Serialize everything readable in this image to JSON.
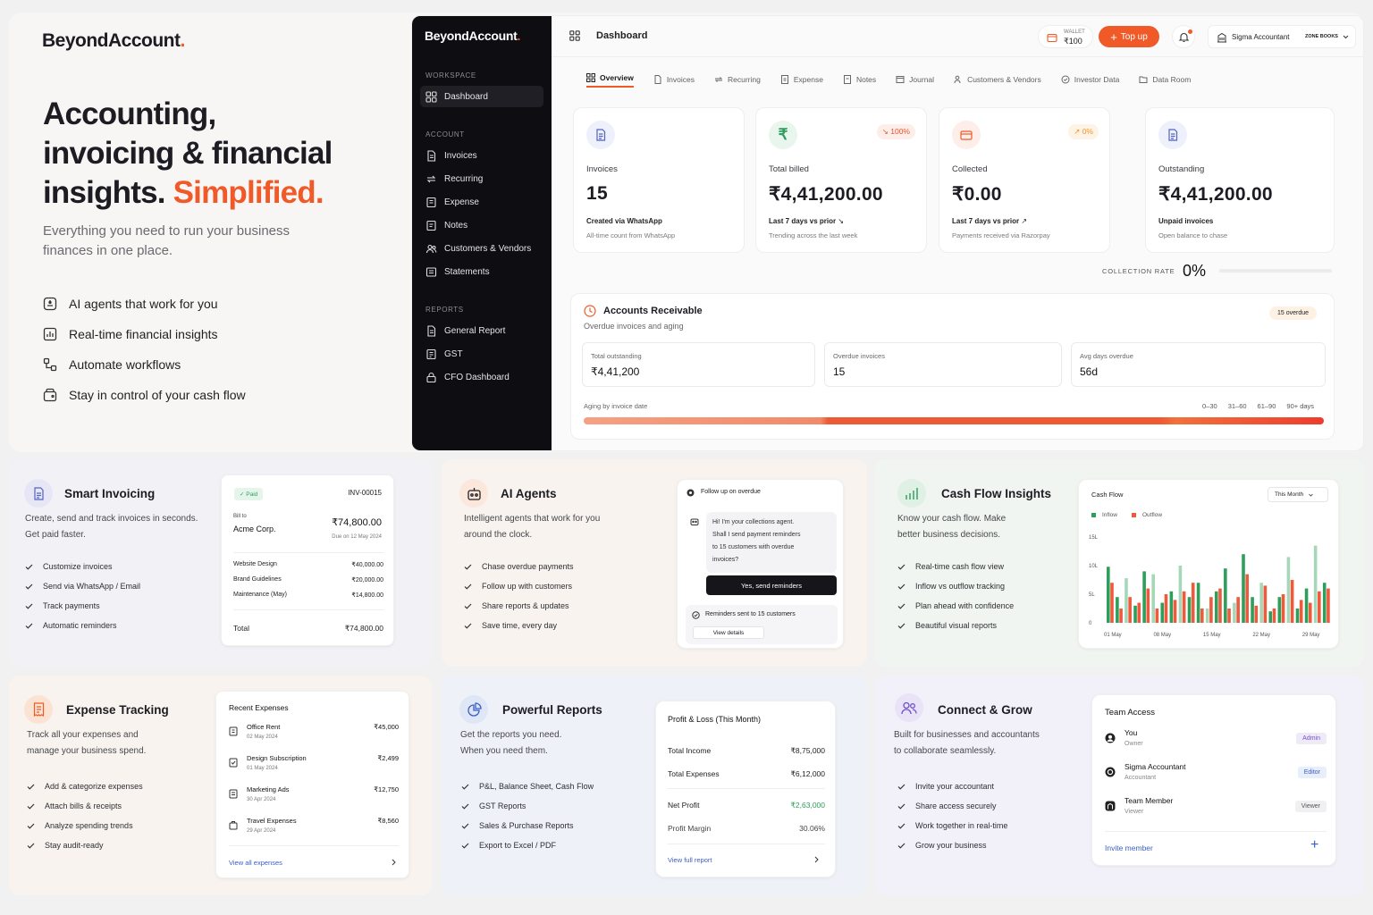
{
  "hero": {
    "logo": "BeyondAccount",
    "headline_line1": "Accounting,",
    "headline_line2": "invoicing & financial",
    "headline_line3a": "insights.",
    "headline_line3b": "Simplified.",
    "subtext_line1": "Everything you need to run your business",
    "subtext_line2": "finances in one place.",
    "features": [
      "AI agents that work for you",
      "Real-time financial insights",
      "Automate workflows",
      "Stay in control of your cash flow"
    ]
  },
  "app": {
    "logo": "BeyondAccount",
    "header_title": "Dashboard",
    "wallet_label": "WALLET",
    "wallet_amount": "₹100",
    "topup_label": "Top up",
    "user_name": "Sigma Accountant",
    "org_name": "ZONE BOOKS",
    "sidebar": {
      "workspace_label": "WORKSPACE",
      "account_label": "ACCOUNT",
      "reports_label": "REPORTS",
      "workspace_items": [
        "Dashboard"
      ],
      "account_items": [
        "Invoices",
        "Recurring",
        "Expense",
        "Notes",
        "Customers & Vendors",
        "Statements"
      ],
      "report_items": [
        "General Report",
        "GST",
        "CFO Dashboard"
      ]
    },
    "tabs": [
      "Overview",
      "Invoices",
      "Recurring",
      "Expense",
      "Notes",
      "Journal",
      "Customers & Vendors",
      "Investor Data",
      "Data Room"
    ],
    "stats": [
      {
        "label": "Invoices",
        "value": "15",
        "sub1": "Created via WhatsApp",
        "sub2": "All-time count from WhatsApp",
        "chip": ""
      },
      {
        "label": "Total billed",
        "value": "₹4,41,200.00",
        "sub1": "Last 7 days vs prior",
        "sub2": "Trending across the last week",
        "chip": "100%"
      },
      {
        "label": "Collected",
        "value": "₹0.00",
        "sub1": "Last 7 days vs prior",
        "sub2": "Payments received via Razorpay",
        "chip": "0%"
      },
      {
        "label": "Outstanding",
        "value": "₹4,41,200.00",
        "sub1": "Unpaid invoices",
        "sub2": "Open balance to chase",
        "chip": ""
      }
    ],
    "collection_rate_label": "COLLECTION RATE",
    "collection_rate_value": "0%",
    "ar": {
      "title": "Accounts Receivable",
      "subtitle": "Overdue invoices and aging",
      "overdue_badge": "15 overdue",
      "boxes": [
        {
          "label": "Total outstanding",
          "value": "₹4,41,200"
        },
        {
          "label": "Overdue invoices",
          "value": "15"
        },
        {
          "label": "Avg days overdue",
          "value": "56d"
        }
      ],
      "aging_label": "Aging by invoice date",
      "aging_buckets": [
        "0–30",
        "31–60",
        "61–90",
        "90+ days"
      ]
    }
  },
  "smart_invoicing": {
    "title": "Smart Invoicing",
    "desc_line1": "Create, send and track invoices in seconds.",
    "desc_line2": "Get paid faster.",
    "checks": [
      "Customize invoices",
      "Send via WhatsApp / Email",
      "Track payments",
      "Automatic reminders"
    ],
    "invoice": {
      "status": "Paid",
      "number": "INV-00015",
      "bill_to_label": "Bill to",
      "customer": "Acme Corp.",
      "amount": "₹74,800.00",
      "due": "Due on 12 May 2024",
      "lines": [
        {
          "item": "Website Design",
          "amount": "₹40,000.00"
        },
        {
          "item": "Brand Guidelines",
          "amount": "₹20,000.00"
        },
        {
          "item": "Maintenance (May)",
          "amount": "₹14,800.00"
        }
      ],
      "total_label": "Total",
      "total": "₹74,800.00"
    }
  },
  "ai_agents": {
    "title": "AI Agents",
    "desc_line1": "Intelligent agents that work for you",
    "desc_line2": "around the clock.",
    "checks": [
      "Chase overdue payments",
      "Follow up with customers",
      "Share reports & updates",
      "Save time, every day"
    ],
    "chat": {
      "header": "Follow up on overdue",
      "message_l1": "Hi! I'm your collections agent.",
      "message_l2": "Shall I send payment reminders",
      "message_l3": "to 15 customers with overdue",
      "message_l4": "invoices?",
      "confirm": "Yes, send reminders",
      "result": "Reminders sent to 15 customers",
      "details": "View details"
    }
  },
  "cash_flow": {
    "title": "Cash Flow Insights",
    "desc_line1": "Know your cash flow. Make",
    "desc_line2": "better business decisions.",
    "checks": [
      "Real-time cash flow view",
      "Inflow vs outflow tracking",
      "Plan ahead with confidence",
      "Beautiful visual reports"
    ],
    "chart_title": "Cash Flow",
    "period": "This Month",
    "colors": {
      "inflow": "#2e9e5b",
      "inflow_light": "#a7d7b9",
      "outflow": "#ef5a3c"
    }
  },
  "chart_data": {
    "type": "bar",
    "title": "Cash Flow",
    "x_tick_labels": [
      "01 May",
      "08 May",
      "15 May",
      "22 May",
      "29 May"
    ],
    "y_tick_labels": [
      "0",
      "5L",
      "10L",
      "15L"
    ],
    "ylim": [
      0,
      15
    ],
    "legend": "top-left",
    "series": [
      {
        "name": "Inflow",
        "values": [
          9.8,
          4.5,
          7.8,
          3,
          9,
          8.5,
          3.5,
          5.5,
          10,
          4.5,
          7,
          2.5,
          5.5,
          9.5,
          3.5,
          12,
          4.5,
          7,
          2,
          4.5,
          11.5,
          2.5,
          6,
          13.5,
          7
        ]
      },
      {
        "name": "Outflow",
        "values": [
          7,
          2.5,
          4.5,
          3.5,
          6,
          2.5,
          5,
          4,
          5.5,
          7,
          2.5,
          4.5,
          6,
          2.5,
          4.5,
          8.5,
          3,
          6.5,
          2.5,
          5,
          7.5,
          4,
          3.5,
          5.5,
          6
        ]
      }
    ]
  },
  "expense": {
    "title": "Expense Tracking",
    "desc_line1": "Track all your expenses and",
    "desc_line2": "manage your business spend.",
    "checks": [
      "Add & categorize expenses",
      "Attach bills & receipts",
      "Analyze spending trends",
      "Stay audit-ready"
    ],
    "panel_title": "Recent Expenses",
    "items": [
      {
        "name": "Office Rent",
        "date": "02 May 2024",
        "amount": "₹45,000"
      },
      {
        "name": "Design Subscription",
        "date": "01 May 2024",
        "amount": "₹2,499"
      },
      {
        "name": "Marketing Ads",
        "date": "30 Apr 2024",
        "amount": "₹12,750"
      },
      {
        "name": "Travel Expenses",
        "date": "29 Apr 2024",
        "amount": "₹8,560"
      }
    ],
    "view_all": "View all expenses"
  },
  "reports": {
    "title": "Powerful Reports",
    "desc_line1": "Get the reports you need.",
    "desc_line2": "When you need them.",
    "checks": [
      "P&L, Balance Sheet, Cash Flow",
      "GST Reports",
      "Sales & Purchase Reports",
      "Export to Excel / PDF"
    ],
    "pl_title": "Profit & Loss (This Month)",
    "rows": [
      {
        "label": "Total Income",
        "value": "₹8,75,000"
      },
      {
        "label": "Total Expenses",
        "value": "₹6,12,000"
      },
      {
        "label": "Net Profit",
        "value": "₹2,63,000"
      },
      {
        "label": "Profit Margin",
        "value": "30.06%"
      }
    ],
    "view_full": "View full report"
  },
  "connect": {
    "title": "Connect & Grow",
    "desc_line1": "Built for businesses and accountants",
    "desc_line2": "to collaborate seamlessly.",
    "checks": [
      "Invite your accountant",
      "Share access securely",
      "Work together in real-time",
      "Grow your business"
    ],
    "panel_title": "Team Access",
    "members": [
      {
        "name": "You",
        "role": "Owner",
        "badge": "Admin"
      },
      {
        "name": "Sigma Accountant",
        "role": "Accountant",
        "badge": "Editor"
      },
      {
        "name": "Team Member",
        "role": "Viewer",
        "badge": "Viewer"
      }
    ],
    "invite": "Invite member"
  },
  "accent": "#f05a28"
}
